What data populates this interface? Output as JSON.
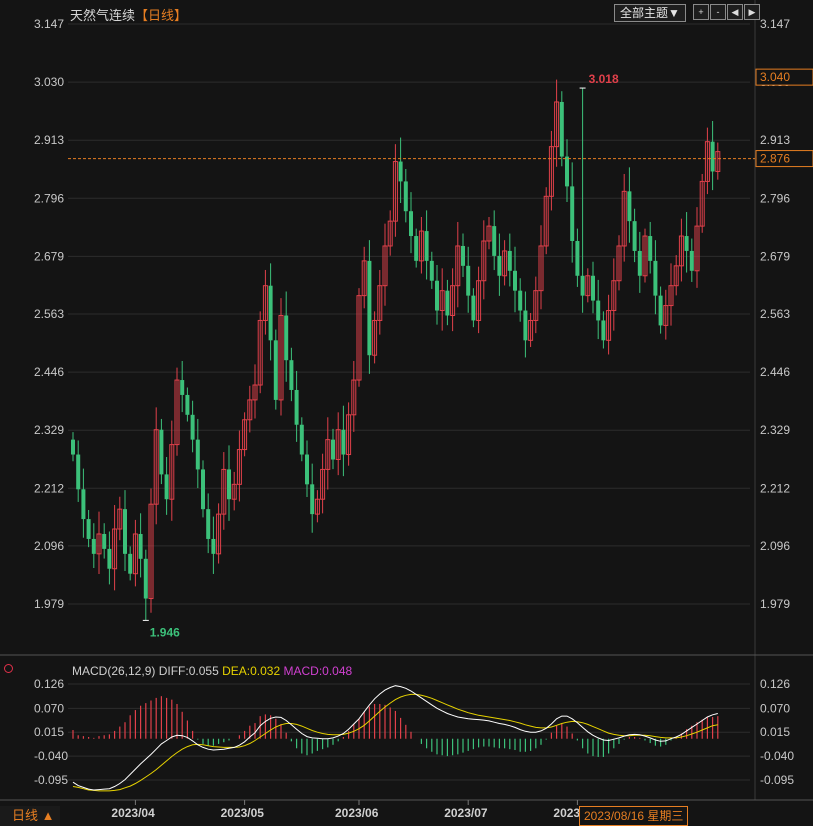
{
  "header": {
    "instrument": "天然气连续",
    "period_label": "【日线】",
    "theme_button": "全部主题▼",
    "tools": [
      "+",
      "-",
      "◀",
      "▶"
    ]
  },
  "footer": {
    "period_tab": "日线 ▲",
    "crosshair_date": "2023/08/16 星期三"
  },
  "macd": {
    "title": "MACD(26,12,9)",
    "diff_label": "DIFF:0.055",
    "dea_label": "DEA:0.032",
    "macd_label": "MACD:0.048"
  },
  "colors": {
    "up": "#e0404a",
    "down": "#3cc17a",
    "price_line": "#e67e22",
    "diff": "#ffffff",
    "dea": "#e6d200",
    "grid": "#2c2c2c"
  },
  "chart_data": {
    "type": "candlestick",
    "y_ticks": [
      "3.147",
      "3.030",
      "2.913",
      "2.796",
      "2.679",
      "2.563",
      "2.446",
      "2.329",
      "2.212",
      "2.096",
      "1.979"
    ],
    "ylim": [
      1.9,
      3.147
    ],
    "x_labels": [
      "2023/04",
      "2023/05",
      "2023/06",
      "2023/07",
      "2023/08"
    ],
    "x_label_index": [
      12,
      33,
      55,
      76,
      97
    ],
    "high_label": "3.018",
    "high_index": 98,
    "low_label": "1.946",
    "low_index": 14,
    "last_price_label": "2.876",
    "last_price": 2.876,
    "right_price_label": "3.040",
    "right_price": 3.04,
    "closes": [
      2.28,
      2.21,
      2.15,
      2.11,
      2.08,
      2.12,
      2.09,
      2.05,
      2.13,
      2.17,
      2.08,
      2.04,
      2.12,
      2.07,
      1.99,
      2.18,
      2.33,
      2.24,
      2.19,
      2.3,
      2.43,
      2.4,
      2.36,
      2.31,
      2.25,
      2.17,
      2.11,
      2.08,
      2.16,
      2.25,
      2.19,
      2.22,
      2.29,
      2.35,
      2.39,
      2.42,
      2.55,
      2.62,
      2.51,
      2.39,
      2.56,
      2.47,
      2.41,
      2.34,
      2.28,
      2.22,
      2.16,
      2.19,
      2.25,
      2.31,
      2.27,
      2.33,
      2.28,
      2.36,
      2.43,
      2.6,
      2.67,
      2.48,
      2.55,
      2.62,
      2.7,
      2.75,
      2.87,
      2.83,
      2.77,
      2.72,
      2.67,
      2.73,
      2.67,
      2.63,
      2.57,
      2.61,
      2.56,
      2.62,
      2.7,
      2.66,
      2.6,
      2.55,
      2.63,
      2.71,
      2.74,
      2.68,
      2.64,
      2.69,
      2.65,
      2.61,
      2.57,
      2.51,
      2.55,
      2.61,
      2.7,
      2.8,
      2.9,
      2.99,
      2.88,
      2.82,
      2.71,
      2.64,
      2.6,
      2.64,
      2.59,
      2.55,
      2.51,
      2.57,
      2.63,
      2.7,
      2.81,
      2.75,
      2.69,
      2.64,
      2.72,
      2.67,
      2.6,
      2.54,
      2.58,
      2.62,
      2.66,
      2.72,
      2.69,
      2.65,
      2.74,
      2.83,
      2.91,
      2.85,
      2.89
    ],
    "macd_ticks": [
      "0.126",
      "0.070",
      "0.015",
      "-0.040",
      "-0.095"
    ],
    "macd_ylim": [
      -0.14,
      0.15
    ],
    "diff": [
      -0.1,
      -0.108,
      -0.112,
      -0.116,
      -0.118,
      -0.117,
      -0.116,
      -0.115,
      -0.11,
      -0.103,
      -0.094,
      -0.082,
      -0.07,
      -0.058,
      -0.047,
      -0.036,
      -0.024,
      -0.012,
      -0.004,
      0.004,
      0.008,
      0.007,
      0.003,
      -0.005,
      -0.014,
      -0.02,
      -0.024,
      -0.026,
      -0.025,
      -0.024,
      -0.022,
      -0.02,
      -0.015,
      -0.007,
      0.004,
      0.014,
      0.03,
      0.04,
      0.047,
      0.05,
      0.049,
      0.042,
      0.032,
      0.022,
      0.012,
      0.005,
      0.002,
      0.001,
      0.0,
      0.0,
      0.002,
      0.006,
      0.012,
      0.022,
      0.034,
      0.046,
      0.062,
      0.078,
      0.092,
      0.103,
      0.112,
      0.118,
      0.122,
      0.12,
      0.116,
      0.11,
      0.102,
      0.094,
      0.086,
      0.078,
      0.07,
      0.064,
      0.058,
      0.054,
      0.05,
      0.048,
      0.046,
      0.045,
      0.044,
      0.043,
      0.041,
      0.038,
      0.035,
      0.033,
      0.03,
      0.026,
      0.021,
      0.017,
      0.015,
      0.015,
      0.018,
      0.024,
      0.034,
      0.046,
      0.052,
      0.052,
      0.046,
      0.037,
      0.026,
      0.016,
      0.008,
      0.002,
      -0.003,
      -0.004,
      -0.001,
      0.002,
      0.006,
      0.009,
      0.01,
      0.009,
      0.006,
      0.002,
      -0.003,
      -0.006,
      -0.005,
      0.0,
      0.004,
      0.01,
      0.018,
      0.026,
      0.034,
      0.042,
      0.05,
      0.055,
      0.058
    ],
    "dea": [
      -0.11,
      -0.112,
      -0.115,
      -0.118,
      -0.119,
      -0.12,
      -0.12,
      -0.12,
      -0.119,
      -0.117,
      -0.113,
      -0.109,
      -0.103,
      -0.096,
      -0.088,
      -0.08,
      -0.071,
      -0.061,
      -0.051,
      -0.041,
      -0.032,
      -0.024,
      -0.018,
      -0.014,
      -0.013,
      -0.014,
      -0.016,
      -0.018,
      -0.019,
      -0.02,
      -0.02,
      -0.02,
      -0.019,
      -0.016,
      -0.011,
      -0.004,
      0.004,
      0.012,
      0.02,
      0.027,
      0.032,
      0.035,
      0.035,
      0.033,
      0.029,
      0.024,
      0.019,
      0.015,
      0.012,
      0.01,
      0.009,
      0.009,
      0.01,
      0.013,
      0.017,
      0.023,
      0.031,
      0.041,
      0.052,
      0.063,
      0.073,
      0.082,
      0.09,
      0.096,
      0.1,
      0.102,
      0.102,
      0.1,
      0.097,
      0.093,
      0.088,
      0.083,
      0.078,
      0.073,
      0.068,
      0.064,
      0.06,
      0.057,
      0.054,
      0.052,
      0.05,
      0.048,
      0.046,
      0.044,
      0.042,
      0.039,
      0.036,
      0.032,
      0.029,
      0.026,
      0.025,
      0.025,
      0.027,
      0.031,
      0.035,
      0.038,
      0.04,
      0.039,
      0.037,
      0.033,
      0.028,
      0.023,
      0.018,
      0.013,
      0.01,
      0.008,
      0.007,
      0.007,
      0.008,
      0.008,
      0.008,
      0.007,
      0.005,
      0.003,
      0.002,
      0.002,
      0.002,
      0.004,
      0.007,
      0.011,
      0.015,
      0.02,
      0.025,
      0.03,
      0.032
    ]
  }
}
